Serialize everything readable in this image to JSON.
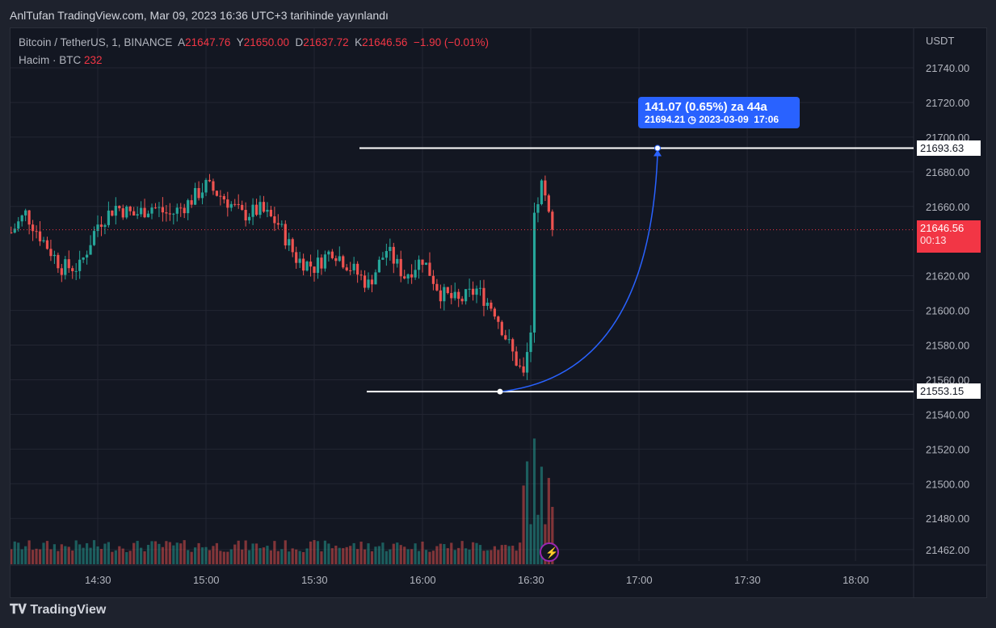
{
  "header": {
    "published": "AnlTufan TradingView.com, Mar 09, 2023 16:36 UTC+3 tarihinde yayınlandı"
  },
  "legend": {
    "symbol": "Bitcoin / TetherUS, 1, BINANCE",
    "o_label": "A",
    "o": "21647.76",
    "h_label": "Y",
    "h": "21650.00",
    "l_label": "D",
    "l": "21637.72",
    "c_label": "K",
    "c": "21646.56",
    "change": "−1.90 (−0.01%)",
    "volume_label": "Hacim · BTC",
    "volume": "232"
  },
  "price_axis": {
    "currency": "USDT",
    "ticks": [
      "21740.00",
      "21720.00",
      "21700.00",
      "21680.00",
      "21660.00",
      "21620.00",
      "21600.00",
      "21580.00",
      "21560.00",
      "21540.00",
      "21520.00",
      "21500.00",
      "21480.00",
      "21462.00"
    ]
  },
  "time_axis": {
    "ticks": [
      "14:30",
      "15:00",
      "15:30",
      "16:00",
      "16:30",
      "17:00",
      "17:30",
      "18:00"
    ]
  },
  "last_price": {
    "value": "21646.56",
    "countdown": "00:13"
  },
  "lines": {
    "high": "21693.63",
    "low": "21553.15"
  },
  "measure": {
    "label": "141.07 (0.65%) za 44a",
    "price": "21694.21",
    "date": "2023-03-09",
    "time": "17:06"
  },
  "colors": {
    "up": "#26a69a",
    "down": "#ef5350",
    "accent": "#2962ff"
  },
  "footer": {
    "brand": "TradingView"
  },
  "chart_data": {
    "type": "candlestick",
    "interval": "1m",
    "ylim": [
      21455,
      21750
    ],
    "keypoints": [
      [
        "14:06",
        21645
      ],
      [
        "14:10",
        21656
      ],
      [
        "14:15",
        21640
      ],
      [
        "14:20",
        21625
      ],
      [
        "14:25",
        21625
      ],
      [
        "14:30",
        21650
      ],
      [
        "14:35",
        21660
      ],
      [
        "14:40",
        21655
      ],
      [
        "14:45",
        21660
      ],
      [
        "14:50",
        21655
      ],
      [
        "14:55",
        21662
      ],
      [
        "15:00",
        21672
      ],
      [
        "15:05",
        21665
      ],
      [
        "15:10",
        21655
      ],
      [
        "15:15",
        21658
      ],
      [
        "15:20",
        21650
      ],
      [
        "15:25",
        21630
      ],
      [
        "15:30",
        21625
      ],
      [
        "15:35",
        21635
      ],
      [
        "15:40",
        21625
      ],
      [
        "15:45",
        21615
      ],
      [
        "15:50",
        21635
      ],
      [
        "15:55",
        21620
      ],
      [
        "16:00",
        21630
      ],
      [
        "16:05",
        21610
      ],
      [
        "16:10",
        21605
      ],
      [
        "16:15",
        21612
      ],
      [
        "16:20",
        21600
      ],
      [
        "16:25",
        21575
      ],
      [
        "16:28",
        21562
      ],
      [
        "16:30",
        21585
      ],
      [
        "16:31",
        21655
      ],
      [
        "16:33",
        21672
      ],
      [
        "16:36",
        21646
      ]
    ]
  }
}
